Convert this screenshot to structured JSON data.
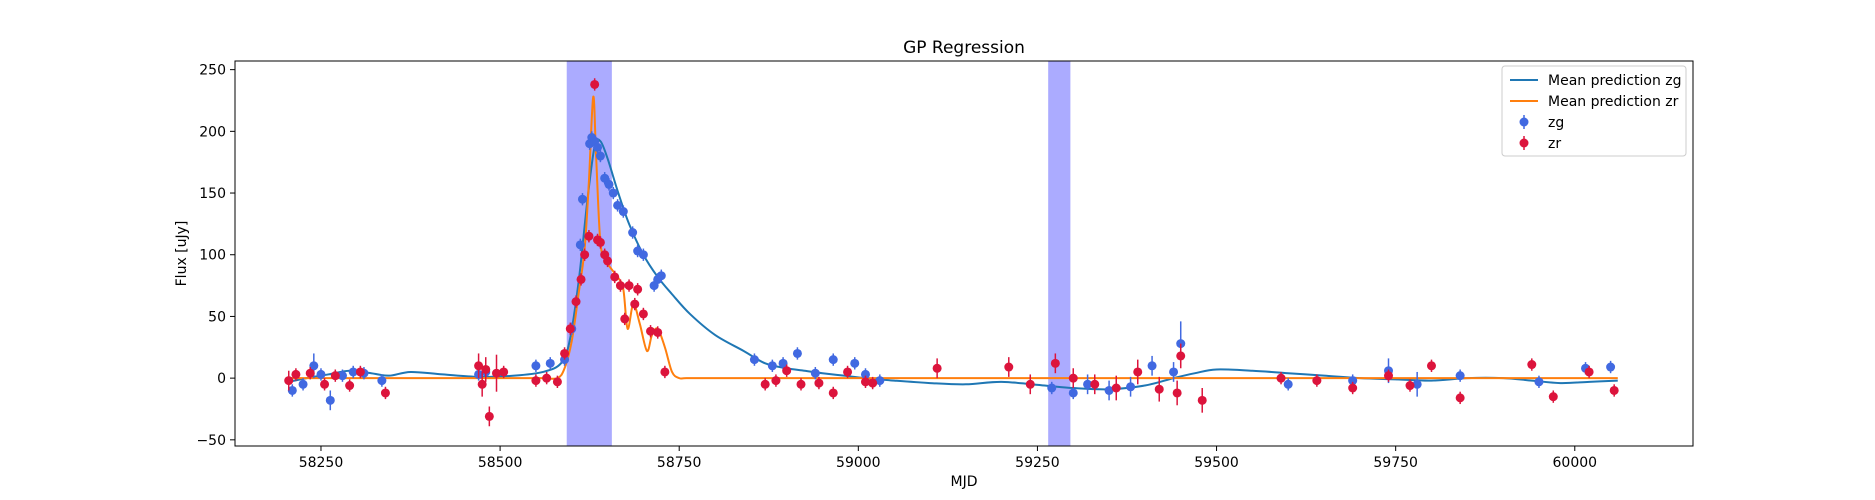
{
  "chart_data": {
    "type": "line",
    "title": "GP Regression",
    "xlabel": "MJD",
    "ylabel": "Flux [uJy]",
    "xlim": [
      58130,
      60165
    ],
    "ylim": [
      -55,
      257
    ],
    "xticks": [
      58250,
      58500,
      58750,
      59000,
      59250,
      59500,
      59750,
      60000
    ],
    "yticks": [
      -50,
      0,
      50,
      100,
      150,
      200,
      250
    ],
    "grid": false,
    "legend_position": "upper right",
    "legend": [
      {
        "label": "Mean prediction zg",
        "kind": "line",
        "color": "#1f77b4"
      },
      {
        "label": "Mean prediction zr",
        "kind": "line",
        "color": "#ff7f0e"
      },
      {
        "label": "zg",
        "kind": "errorbar",
        "color": "#4169e1"
      },
      {
        "label": "zr",
        "kind": "errorbar",
        "color": "#dc143c"
      }
    ],
    "shaded_regions": [
      {
        "x0": 58593,
        "x1": 58656,
        "color": "#0000ff",
        "alpha": 0.33
      },
      {
        "x0": 59265,
        "x1": 59296,
        "color": "#0000ff",
        "alpha": 0.33
      }
    ],
    "series": [
      {
        "name": "Mean prediction zg",
        "type": "line",
        "color": "#1f77b4",
        "x": [
          58205,
          58230,
          58260,
          58290,
          58320,
          58345,
          58375,
          58420,
          58470,
          58520,
          58560,
          58585,
          58597,
          58610,
          58622,
          58632,
          58640,
          58650,
          58665,
          58680,
          58700,
          58720,
          58740,
          58765,
          58800,
          58840,
          58870,
          58900,
          58925,
          58950,
          58980,
          59010,
          59050,
          59100,
          59150,
          59200,
          59260,
          59300,
          59350,
          59400,
          59440,
          59470,
          59500,
          59550,
          59600,
          59650,
          59700,
          59750,
          59800,
          59850,
          59900,
          59940,
          59980,
          60020,
          60060
        ],
        "y": [
          -3,
          0,
          3,
          6,
          4,
          2,
          5,
          3,
          1,
          2,
          5,
          12,
          30,
          80,
          145,
          188,
          192,
          178,
          150,
          125,
          100,
          82,
          68,
          52,
          35,
          22,
          12,
          8,
          6,
          4,
          2,
          0,
          -2,
          -4,
          -5,
          -3,
          -6,
          -8,
          -9,
          -6,
          0,
          4,
          7,
          6,
          4,
          2,
          0,
          -1,
          -2,
          0,
          0,
          -2,
          -4,
          -3,
          -2
        ]
      },
      {
        "name": "Mean prediction zr",
        "type": "line",
        "color": "#ff7f0e",
        "x": [
          58205,
          58240,
          58280,
          58320,
          58345,
          58380,
          58420,
          58470,
          58520,
          58560,
          58580,
          58590,
          58600,
          58610,
          58618,
          58624,
          58630,
          58634,
          58640,
          58648,
          58656,
          58664,
          58672,
          58678,
          58686,
          58695,
          58705,
          58712,
          58720,
          58730,
          58740,
          58750,
          58760,
          58800,
          58850,
          58900,
          58950,
          59000,
          59050,
          59100,
          59150,
          59200,
          59260,
          59300,
          59350,
          59400,
          59440,
          59480,
          59550,
          59600,
          59700,
          59800,
          59900,
          60000,
          60060
        ],
        "y": [
          0,
          0,
          0,
          0,
          0,
          0,
          0,
          0,
          0,
          0,
          0,
          8,
          30,
          70,
          105,
          160,
          228,
          180,
          110,
          95,
          88,
          82,
          72,
          40,
          60,
          44,
          22,
          35,
          40,
          25,
          5,
          0,
          0,
          0,
          0,
          0,
          0,
          0,
          0,
          0,
          0,
          0,
          0,
          0,
          0,
          0,
          0,
          0,
          0,
          0,
          0,
          0,
          0,
          0,
          0
        ]
      },
      {
        "name": "zg",
        "type": "errorbar",
        "color": "#4169e1",
        "x": [
          58210,
          58225,
          58240,
          58250,
          58263,
          58280,
          58295,
          58310,
          58335,
          58470,
          58480,
          58550,
          58570,
          58590,
          58600,
          58612,
          58615,
          58625,
          58628,
          58632,
          58636,
          58640,
          58646,
          58652,
          58658,
          58664,
          58672,
          58685,
          58692,
          58700,
          58715,
          58720,
          58725,
          58855,
          58880,
          58895,
          58915,
          58940,
          58965,
          58995,
          59010,
          59030,
          59270,
          59300,
          59320,
          59350,
          59380,
          59410,
          59440,
          59450,
          59600,
          59690,
          59740,
          59780,
          59840,
          59950,
          60015,
          60050
        ],
        "y": [
          -10,
          -5,
          10,
          3,
          -18,
          2,
          5,
          4,
          -2,
          3,
          5,
          10,
          12,
          15,
          40,
          108,
          145,
          190,
          195,
          192,
          187,
          180,
          162,
          157,
          150,
          140,
          135,
          118,
          103,
          100,
          75,
          80,
          83,
          15,
          10,
          12,
          20,
          4,
          15,
          12,
          3,
          -2,
          -8,
          -12,
          -5,
          -10,
          -7,
          10,
          5,
          28,
          -5,
          -2,
          6,
          -5,
          2,
          -3,
          8,
          9
        ],
        "err": [
          5,
          5,
          10,
          5,
          8,
          5,
          5,
          5,
          5,
          5,
          5,
          5,
          5,
          5,
          5,
          5,
          5,
          5,
          5,
          5,
          5,
          5,
          5,
          5,
          5,
          5,
          5,
          5,
          5,
          5,
          5,
          5,
          5,
          5,
          5,
          5,
          5,
          5,
          5,
          5,
          5,
          5,
          5,
          5,
          8,
          8,
          8,
          8,
          8,
          18,
          5,
          5,
          10,
          10,
          5,
          5,
          5,
          5
        ]
      },
      {
        "name": "zr",
        "type": "errorbar",
        "color": "#dc143c",
        "x": [
          58205,
          58215,
          58235,
          58255,
          58270,
          58290,
          58305,
          58340,
          58470,
          58475,
          58480,
          58485,
          58495,
          58505,
          58550,
          58565,
          58580,
          58590,
          58598,
          58606,
          58613,
          58618,
          58624,
          58632,
          58636,
          58640,
          58646,
          58650,
          58660,
          58668,
          58674,
          58680,
          58688,
          58692,
          58700,
          58710,
          58720,
          58730,
          58870,
          58885,
          58900,
          58920,
          58945,
          58965,
          58985,
          59010,
          59020,
          59110,
          59210,
          59240,
          59275,
          59300,
          59330,
          59360,
          59390,
          59420,
          59445,
          59450,
          59480,
          59590,
          59640,
          59690,
          59740,
          59770,
          59800,
          59840,
          59940,
          59970,
          60020,
          60055
        ],
        "y": [
          -2,
          3,
          4,
          -5,
          2,
          -6,
          5,
          -12,
          10,
          -5,
          7,
          -31,
          4,
          5,
          -2,
          0,
          -3,
          20,
          40,
          62,
          80,
          100,
          115,
          238,
          112,
          110,
          100,
          95,
          82,
          75,
          48,
          75,
          60,
          72,
          52,
          38,
          37,
          5,
          -5,
          -2,
          6,
          -5,
          -4,
          -12,
          5,
          -3,
          -4,
          8,
          9,
          -5,
          12,
          0,
          -5,
          -8,
          5,
          -9,
          -12,
          18,
          -18,
          0,
          -2,
          -8,
          2,
          -6,
          10,
          -16,
          11,
          -15,
          5,
          -10
        ],
        "err": [
          8,
          5,
          5,
          5,
          5,
          5,
          5,
          5,
          10,
          10,
          10,
          8,
          15,
          5,
          5,
          5,
          5,
          5,
          5,
          5,
          5,
          5,
          5,
          5,
          5,
          5,
          5,
          5,
          5,
          5,
          5,
          5,
          5,
          5,
          5,
          5,
          5,
          5,
          5,
          5,
          5,
          5,
          5,
          5,
          5,
          5,
          5,
          8,
          8,
          8,
          8,
          8,
          8,
          10,
          10,
          10,
          10,
          10,
          10,
          5,
          5,
          5,
          5,
          5,
          5,
          5,
          5,
          5,
          5,
          5
        ]
      }
    ]
  }
}
